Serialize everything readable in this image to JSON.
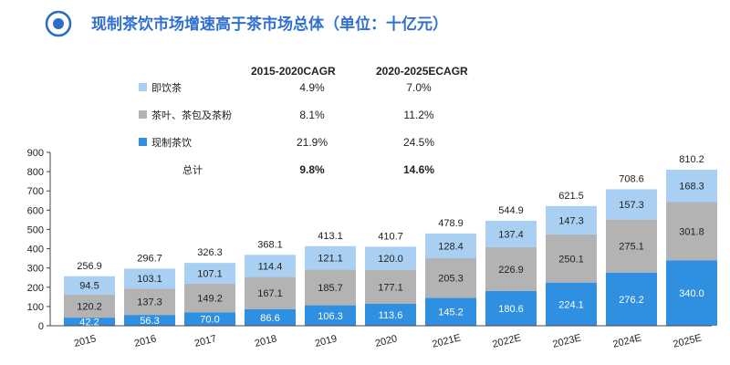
{
  "header": {
    "title": "现制茶饮市场增速高于茶市场总体（单位：十亿元）"
  },
  "cagr_table": {
    "col1": "2015-2020CAGR",
    "col2": "2020-2025ECAGR",
    "total_label": "总计",
    "total_col1": "9.8%",
    "total_col2": "14.6%"
  },
  "chart_data": {
    "type": "bar",
    "stacked": true,
    "title": "现制茶饮市场增速高于茶市场总体（单位：十亿元）",
    "categories": [
      "2015",
      "2016",
      "2017",
      "2018",
      "2019",
      "2020",
      "2021E",
      "2022E",
      "2023E",
      "2024E",
      "2025E"
    ],
    "series": [
      {
        "name": "现制茶饮",
        "color": "#2f8fe0",
        "label_color": "#ffffff",
        "cagr_2015_2020": "21.9%",
        "cagr_2020_2025E": "24.5%",
        "values": [
          42.2,
          56.3,
          70.0,
          86.6,
          106.3,
          113.6,
          145.2,
          180.6,
          224.1,
          276.2,
          340.0
        ],
        "labels": [
          "42.2",
          "56.3",
          "70.0",
          "86.6",
          "106.3",
          "113.6",
          "145.2",
          "180.6",
          "224.1",
          "276.2",
          "340.0"
        ]
      },
      {
        "name": "茶叶、茶包及茶粉",
        "color": "#b3b3b3",
        "label_color": "#222222",
        "cagr_2015_2020": "8.1%",
        "cagr_2020_2025E": "11.2%",
        "values": [
          120.2,
          137.3,
          149.2,
          167.1,
          185.7,
          177.1,
          205.3,
          226.9,
          250.1,
          275.1,
          301.8
        ],
        "labels": [
          "120.2",
          "137.3",
          "149.2",
          "167.1",
          "185.7",
          "177.1",
          "205.3",
          "226.9",
          "250.1",
          "275.1",
          "301.8"
        ]
      },
      {
        "name": "即饮茶",
        "color": "#a9d0f2",
        "label_color": "#222222",
        "cagr_2015_2020": "4.9%",
        "cagr_2020_2025E": "7.0%",
        "values": [
          94.5,
          103.1,
          107.1,
          114.4,
          121.1,
          120.0,
          128.4,
          137.4,
          147.3,
          157.3,
          168.3
        ],
        "labels": [
          "94.5",
          "103.1",
          "107.1",
          "114.4",
          "121.1",
          "120.0",
          "128.4",
          "137.4",
          "147.3",
          "157.3",
          "168.3"
        ]
      }
    ],
    "totals": [
      256.9,
      296.7,
      326.3,
      368.1,
      413.1,
      410.7,
      478.9,
      544.9,
      621.5,
      708.6,
      810.2
    ],
    "total_labels": [
      "256.9",
      "296.7",
      "326.3",
      "368.1",
      "413.1",
      "410.7",
      "478.9",
      "544.9",
      "621.5",
      "708.6",
      "810.2"
    ],
    "ylim": [
      0,
      900
    ],
    "yticks": [
      0,
      100,
      200,
      300,
      400,
      500,
      600,
      700,
      800,
      900
    ],
    "xlabel": "",
    "ylabel": "",
    "legend_placement": "top-left",
    "grid": false
  }
}
